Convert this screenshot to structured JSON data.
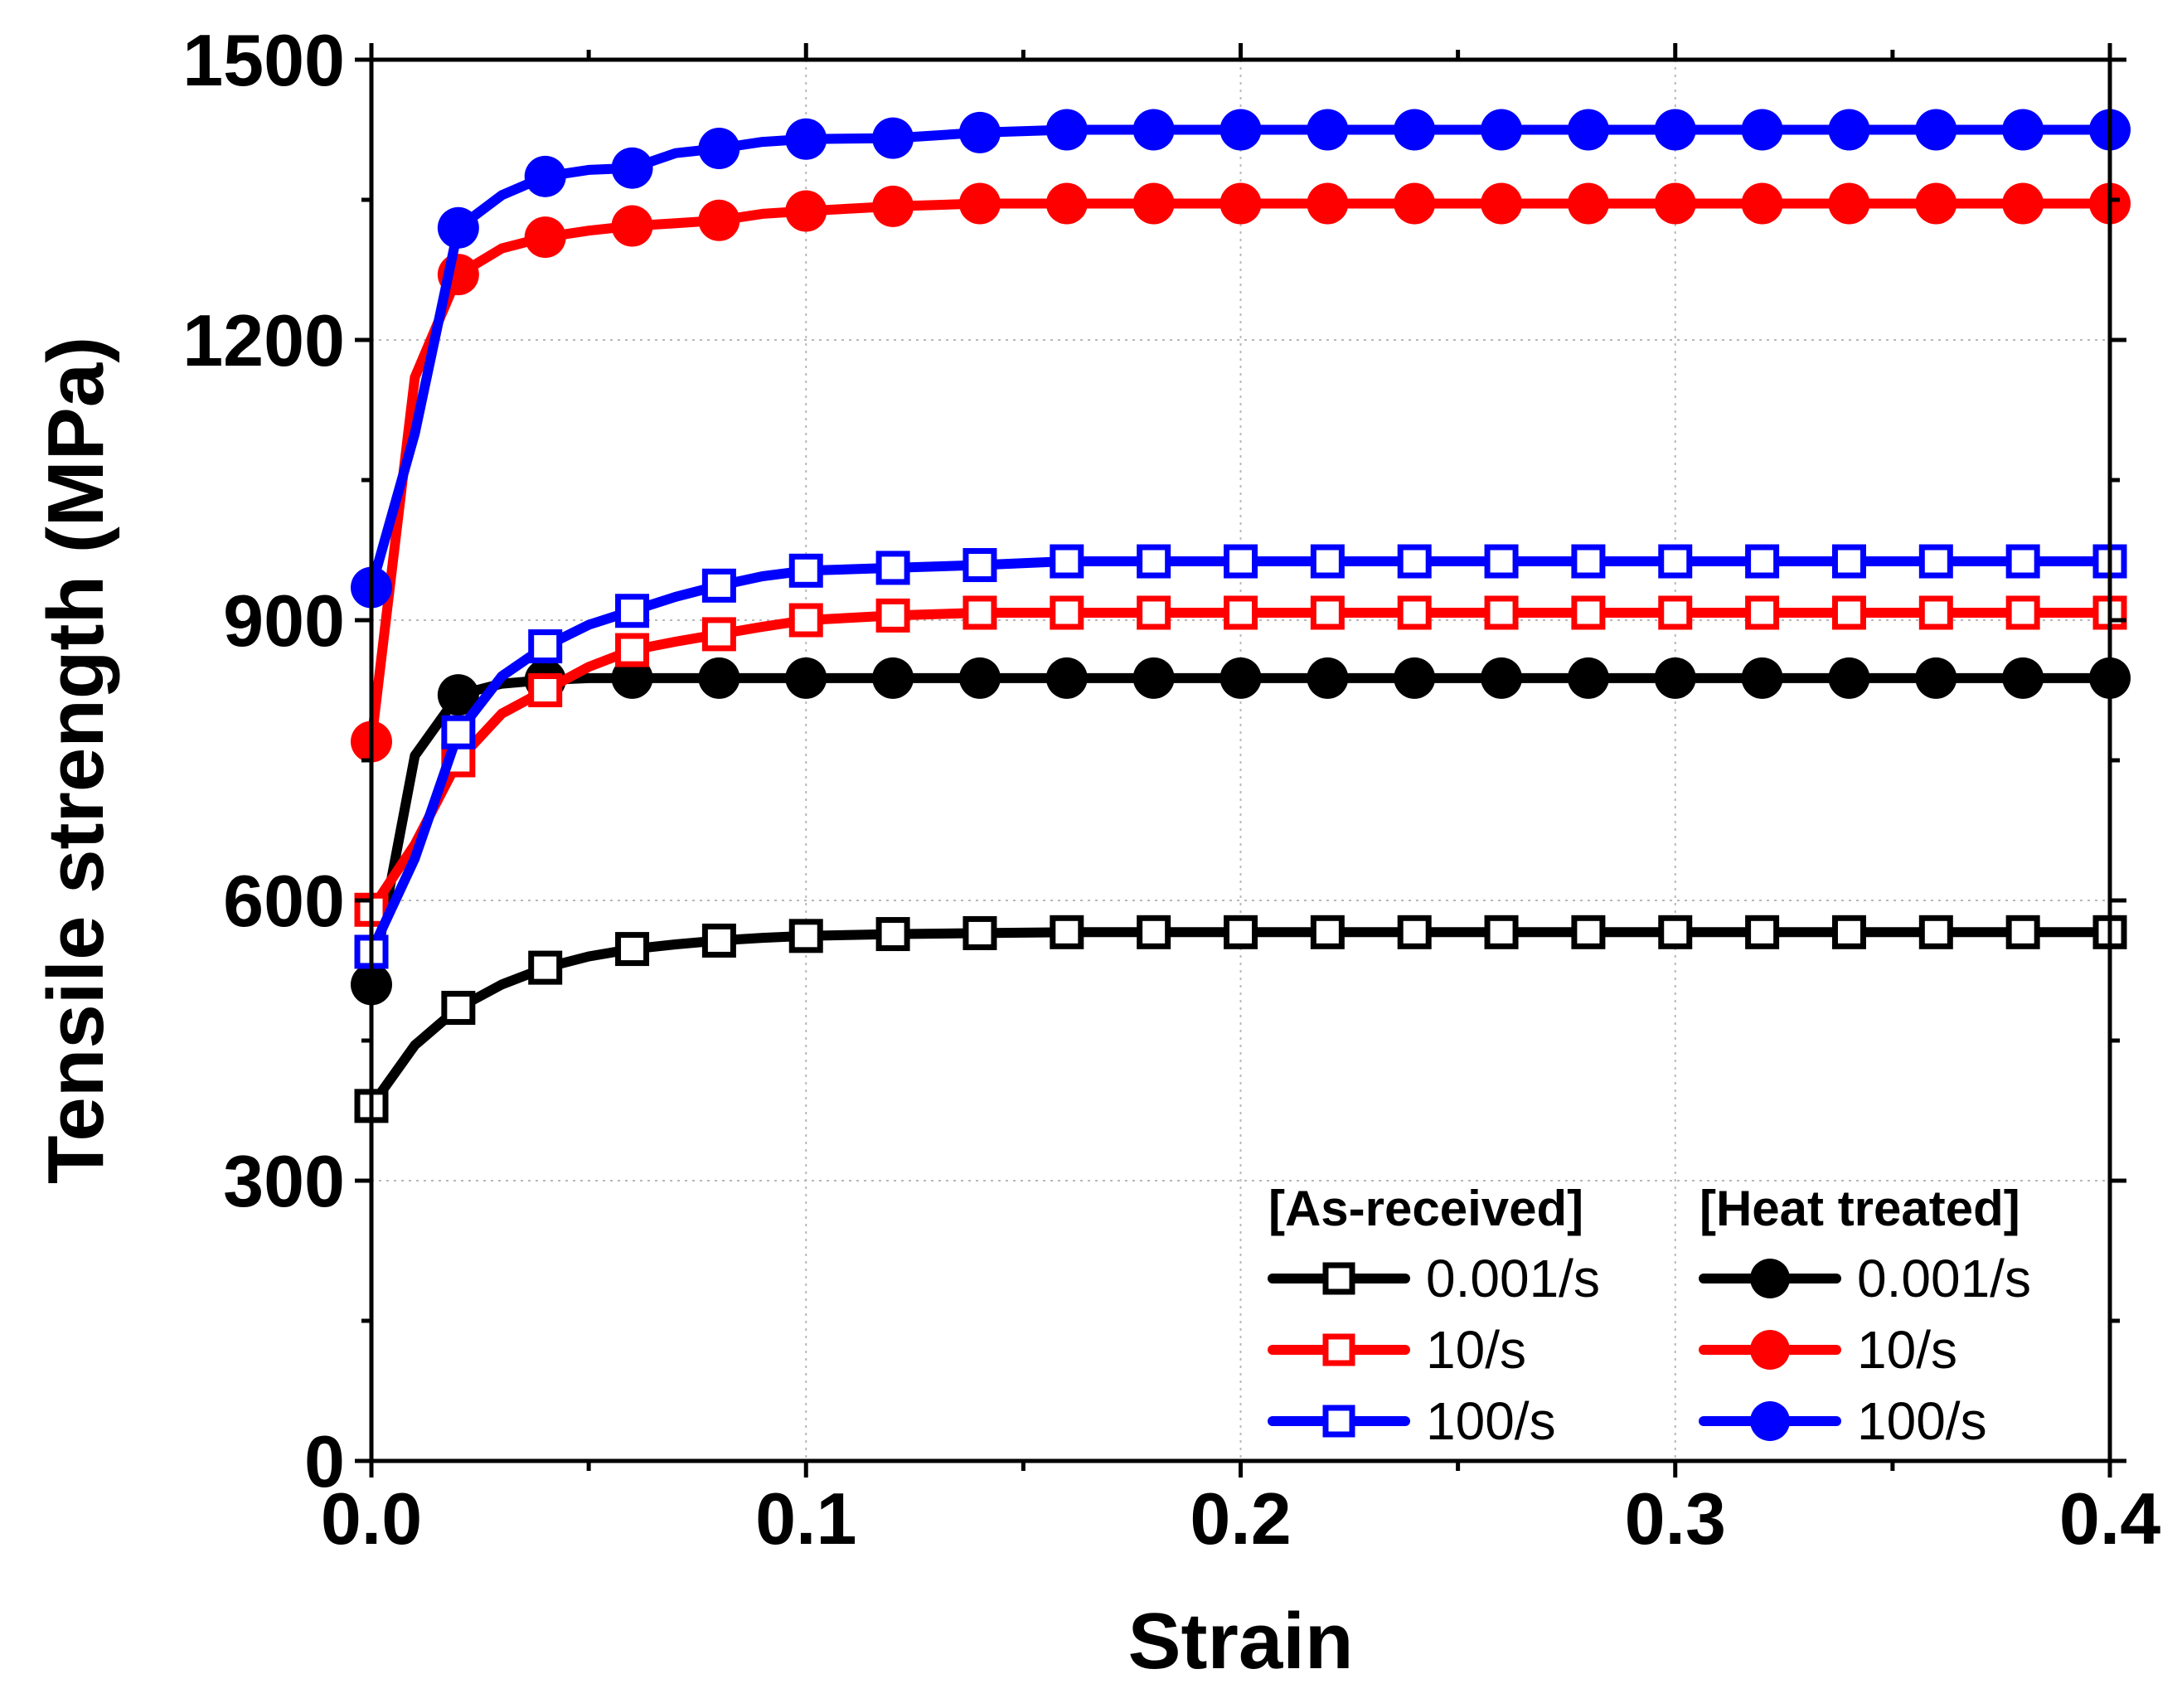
{
  "chart_data": {
    "type": "line",
    "title": "",
    "xlabel": "Strain",
    "ylabel": "Tensile strength (MPa)",
    "xlim": [
      0.0,
      0.4
    ],
    "ylim": [
      0,
      1500
    ],
    "xticks": [
      0.0,
      0.1,
      0.2,
      0.3,
      0.4
    ],
    "xtick_labels": [
      "0.0",
      "0.1",
      "0.2",
      "0.3",
      "0.4"
    ],
    "yticks": [
      0,
      300,
      600,
      900,
      1200,
      1500
    ],
    "ytick_labels": [
      "0",
      "300",
      "600",
      "900",
      "1200",
      "1500"
    ],
    "grid": true,
    "legend_position": "bottom-right",
    "legend_groups": [
      {
        "heading": "[As-received]",
        "series": [
          "ar-0.001",
          "ar-10",
          "ar-100"
        ]
      },
      {
        "heading": "[Heat treated]",
        "series": [
          "ht-0.001",
          "ht-10",
          "ht-100"
        ]
      }
    ],
    "series": [
      {
        "id": "ar-0.001",
        "group": "As-received",
        "name": "0.001/s",
        "color": "#000000",
        "marker": "open-square",
        "x": [
          0,
          0.01,
          0.02,
          0.03,
          0.04,
          0.05,
          0.06,
          0.07,
          0.08,
          0.09,
          0.1,
          0.12,
          0.14,
          0.16,
          0.18,
          0.2,
          0.22,
          0.24,
          0.26,
          0.28,
          0.3,
          0.32,
          0.34,
          0.36,
          0.38,
          0.4
        ],
        "y": [
          380,
          445,
          485,
          510,
          528,
          540,
          548,
          553,
          557,
          560,
          562,
          564,
          565,
          566,
          566,
          566,
          566,
          566,
          566,
          566,
          566,
          566,
          566,
          566,
          566,
          566
        ],
        "marker_x": [
          0,
          0.02,
          0.04,
          0.06,
          0.08,
          0.1,
          0.12,
          0.14,
          0.16,
          0.18,
          0.2,
          0.22,
          0.24,
          0.26,
          0.28,
          0.3,
          0.32,
          0.34,
          0.36,
          0.38,
          0.4
        ]
      },
      {
        "id": "ar-10",
        "group": "As-received",
        "name": "10/s",
        "color": "#ff0000",
        "marker": "open-square",
        "x": [
          0,
          0.01,
          0.02,
          0.03,
          0.04,
          0.05,
          0.06,
          0.07,
          0.08,
          0.09,
          0.1,
          0.12,
          0.14,
          0.16,
          0.18,
          0.2,
          0.22,
          0.24,
          0.26,
          0.28,
          0.3,
          0.32,
          0.34,
          0.36,
          0.38,
          0.4
        ],
        "y": [
          590,
          660,
          750,
          800,
          825,
          850,
          868,
          877,
          885,
          893,
          900,
          905,
          908,
          908,
          908,
          908,
          908,
          908,
          908,
          908,
          908,
          908,
          908,
          908,
          908,
          908
        ],
        "marker_x": [
          0,
          0.02,
          0.04,
          0.06,
          0.08,
          0.1,
          0.12,
          0.14,
          0.16,
          0.18,
          0.2,
          0.22,
          0.24,
          0.26,
          0.28,
          0.3,
          0.32,
          0.34,
          0.36,
          0.38,
          0.4
        ]
      },
      {
        "id": "ar-100",
        "group": "As-received",
        "name": "100/s",
        "color": "#0000ff",
        "marker": "open-square",
        "x": [
          0,
          0.01,
          0.02,
          0.03,
          0.04,
          0.05,
          0.06,
          0.07,
          0.08,
          0.09,
          0.1,
          0.12,
          0.14,
          0.16,
          0.18,
          0.2,
          0.22,
          0.24,
          0.26,
          0.28,
          0.3,
          0.32,
          0.34,
          0.36,
          0.38,
          0.4
        ],
        "y": [
          545,
          645,
          780,
          840,
          872,
          895,
          910,
          925,
          937,
          947,
          953,
          956,
          959,
          963,
          963,
          963,
          963,
          963,
          963,
          963,
          963,
          963,
          963,
          963,
          963,
          963
        ],
        "marker_x": [
          0,
          0.02,
          0.04,
          0.06,
          0.08,
          0.1,
          0.12,
          0.14,
          0.16,
          0.18,
          0.2,
          0.22,
          0.24,
          0.26,
          0.28,
          0.3,
          0.32,
          0.34,
          0.36,
          0.38,
          0.4
        ]
      },
      {
        "id": "ht-0.001",
        "group": "Heat treated",
        "name": "0.001/s",
        "color": "#000000",
        "marker": "filled-circle",
        "x": [
          0,
          0.01,
          0.02,
          0.03,
          0.04,
          0.05,
          0.06,
          0.08,
          0.1,
          0.12,
          0.14,
          0.16,
          0.18,
          0.2,
          0.22,
          0.24,
          0.26,
          0.28,
          0.3,
          0.32,
          0.34,
          0.36,
          0.38,
          0.4
        ],
        "y": [
          510,
          755,
          820,
          832,
          836,
          838,
          838,
          838,
          838,
          838,
          838,
          838,
          838,
          838,
          838,
          838,
          838,
          838,
          838,
          838,
          838,
          838,
          838,
          838
        ],
        "marker_x": [
          0,
          0.02,
          0.04,
          0.06,
          0.08,
          0.1,
          0.12,
          0.14,
          0.16,
          0.18,
          0.2,
          0.22,
          0.24,
          0.26,
          0.28,
          0.3,
          0.32,
          0.34,
          0.36,
          0.38,
          0.4
        ]
      },
      {
        "id": "ht-10",
        "group": "Heat treated",
        "name": "10/s",
        "color": "#ff0000",
        "marker": "filled-circle",
        "x": [
          0,
          0.01,
          0.02,
          0.03,
          0.04,
          0.05,
          0.06,
          0.07,
          0.08,
          0.09,
          0.1,
          0.12,
          0.14,
          0.16,
          0.18,
          0.2,
          0.22,
          0.24,
          0.26,
          0.28,
          0.3,
          0.32,
          0.34,
          0.36,
          0.38,
          0.4
        ],
        "y": [
          770,
          1160,
          1270,
          1298,
          1310,
          1317,
          1322,
          1325,
          1328,
          1335,
          1338,
          1343,
          1346,
          1346,
          1346,
          1346,
          1346,
          1346,
          1346,
          1346,
          1346,
          1346,
          1346,
          1346,
          1346,
          1346
        ],
        "marker_x": [
          0,
          0.02,
          0.04,
          0.06,
          0.08,
          0.1,
          0.12,
          0.14,
          0.16,
          0.18,
          0.2,
          0.22,
          0.24,
          0.26,
          0.28,
          0.3,
          0.32,
          0.34,
          0.36,
          0.38,
          0.4
        ]
      },
      {
        "id": "ht-100",
        "group": "Heat treated",
        "name": "100/s",
        "color": "#0000ff",
        "marker": "filled-circle",
        "x": [
          0,
          0.01,
          0.02,
          0.03,
          0.04,
          0.05,
          0.06,
          0.07,
          0.08,
          0.09,
          0.1,
          0.12,
          0.14,
          0.16,
          0.18,
          0.2,
          0.22,
          0.24,
          0.26,
          0.28,
          0.3,
          0.32,
          0.34,
          0.36,
          0.38,
          0.4
        ],
        "y": [
          935,
          1100,
          1320,
          1355,
          1375,
          1382,
          1384,
          1400,
          1405,
          1412,
          1415,
          1416,
          1422,
          1425,
          1425,
          1425,
          1425,
          1425,
          1425,
          1425,
          1425,
          1425,
          1425,
          1425,
          1425,
          1425
        ],
        "marker_x": [
          0,
          0.02,
          0.04,
          0.06,
          0.08,
          0.1,
          0.12,
          0.14,
          0.16,
          0.18,
          0.2,
          0.22,
          0.24,
          0.26,
          0.28,
          0.3,
          0.32,
          0.34,
          0.36,
          0.38,
          0.4
        ]
      }
    ]
  }
}
